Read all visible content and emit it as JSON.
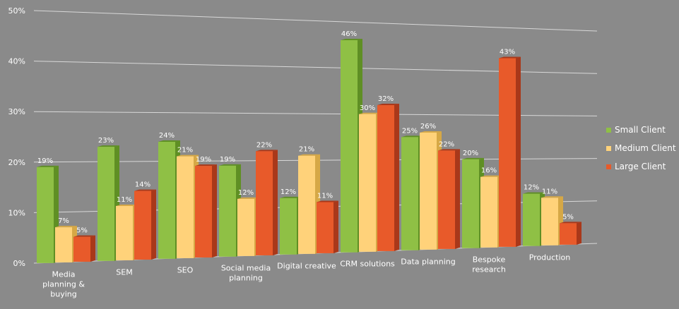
{
  "chart_data": {
    "type": "bar",
    "title": "",
    "xlabel": "",
    "ylabel": "",
    "ylim": [
      0,
      50
    ],
    "yticks": [
      "0%",
      "10%",
      "20%",
      "30%",
      "40%",
      "50%"
    ],
    "grid": true,
    "legend_position": "right",
    "categories": [
      [
        "Media",
        "planning &",
        "buying"
      ],
      [
        "SEM"
      ],
      [
        "SEO"
      ],
      [
        "Social media",
        "planning"
      ],
      [
        "Digital creative"
      ],
      [
        "CRM solutions"
      ],
      [
        "Data planning"
      ],
      [
        "Bespoke",
        "research"
      ],
      [
        "Production"
      ]
    ],
    "series": [
      {
        "name": "Small Client",
        "color": "#8fc045",
        "side": "#5f8f24",
        "values": [
          19,
          23,
          24,
          19,
          12,
          46,
          25,
          20,
          12
        ],
        "labels": [
          "19%",
          "23%",
          "24%",
          "19%",
          "12%",
          "46%",
          "25%",
          "20%",
          "12%"
        ]
      },
      {
        "name": "Medium Client",
        "color": "#ffd27a",
        "side": "#d6a846",
        "values": [
          7,
          11,
          21,
          12,
          21,
          30,
          26,
          16,
          11
        ],
        "labels": [
          "7%",
          "11%",
          "21%",
          "12%",
          "21%",
          "30%",
          "26%",
          "16%",
          "11%"
        ]
      },
      {
        "name": "Large Client",
        "color": "#e85a2a",
        "side": "#a9381a",
        "values": [
          5,
          14,
          19,
          22,
          11,
          32,
          22,
          43,
          5
        ],
        "labels": [
          "5%",
          "14%",
          "19%",
          "22%",
          "11%",
          "32%",
          "22%",
          "43%",
          "5%"
        ]
      }
    ]
  }
}
